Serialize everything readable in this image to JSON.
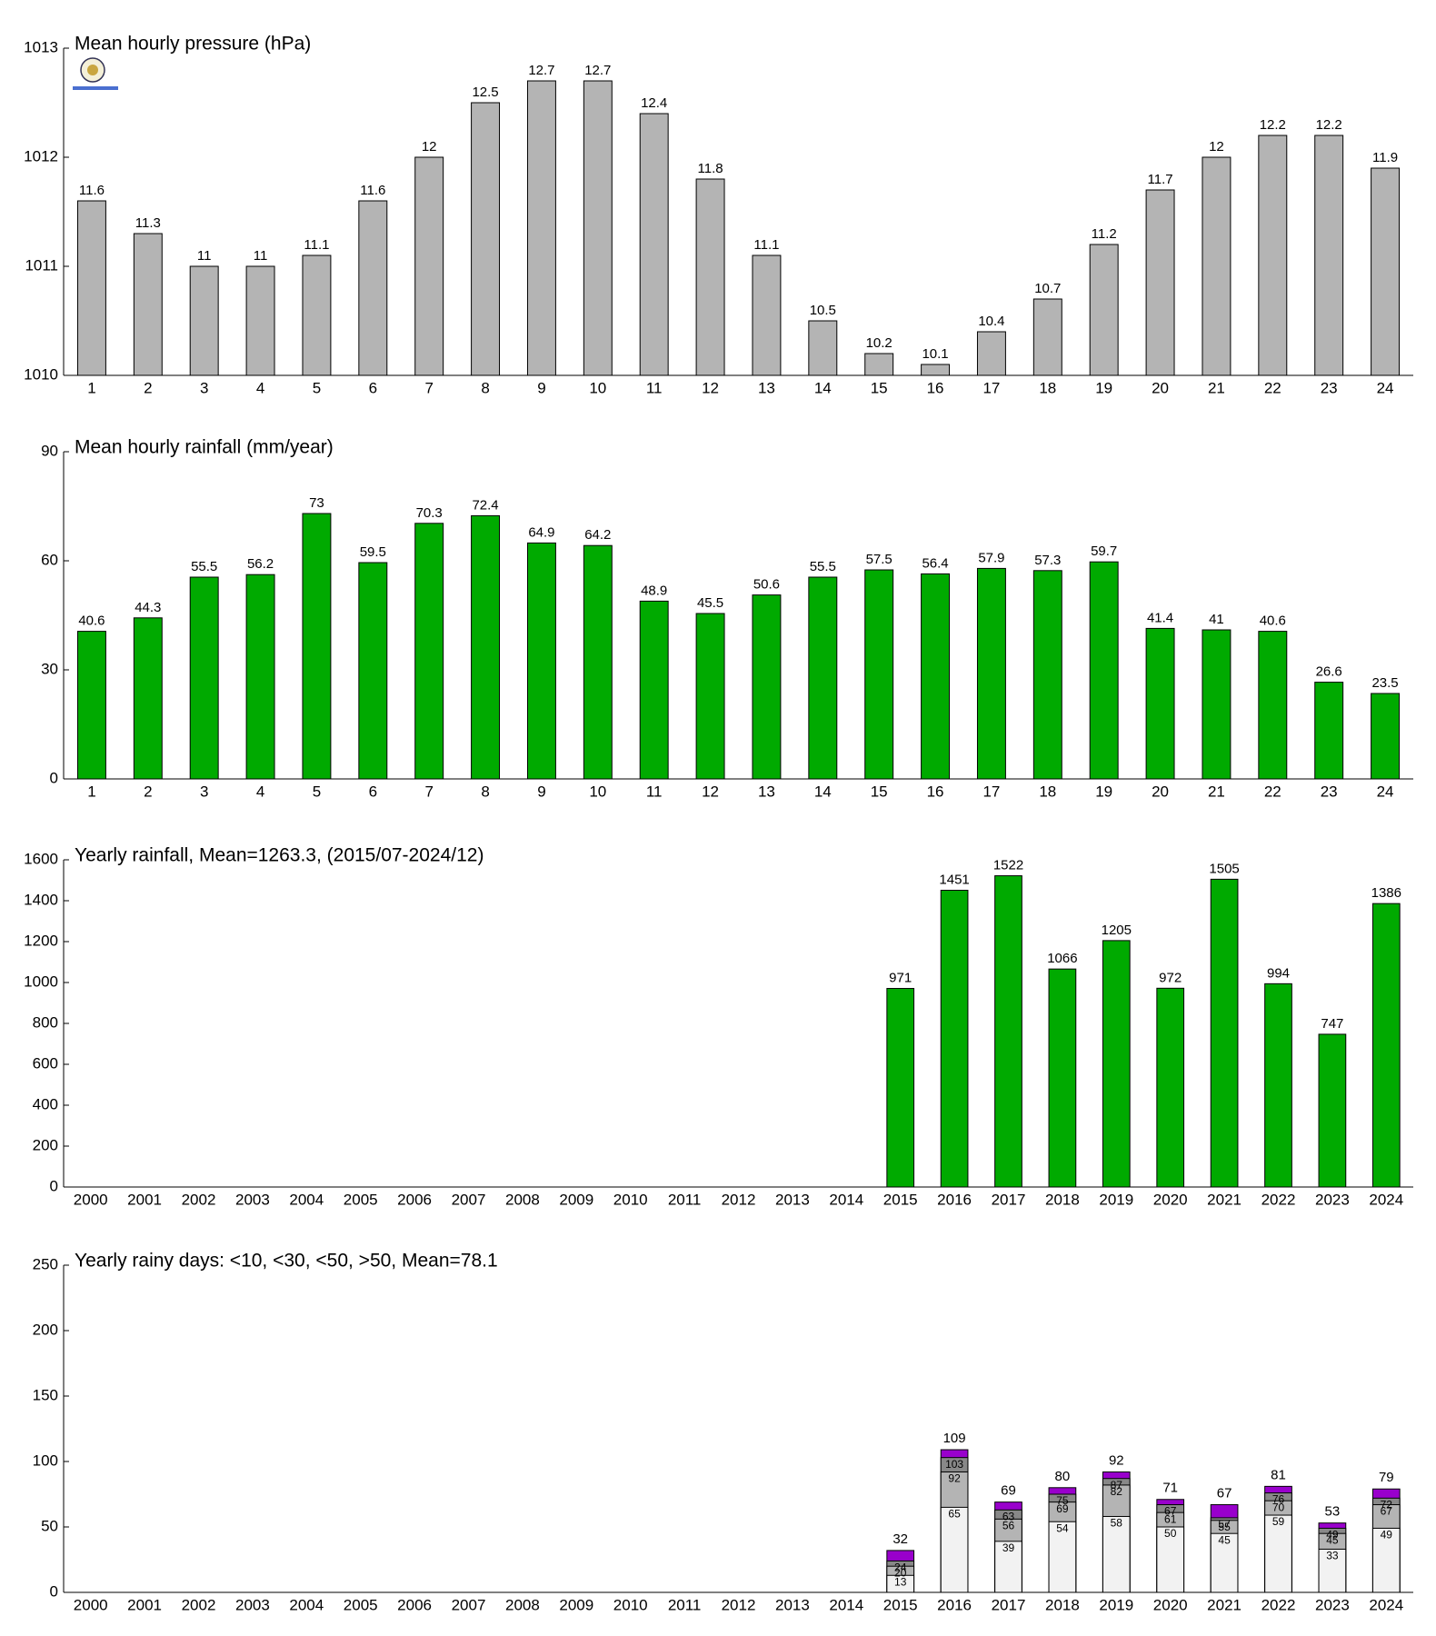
{
  "chart_data": [
    {
      "type": "bar",
      "title": "Mean hourly pressure (hPa)",
      "categories": [
        "1",
        "2",
        "3",
        "4",
        "5",
        "6",
        "7",
        "8",
        "9",
        "10",
        "11",
        "12",
        "13",
        "14",
        "15",
        "16",
        "17",
        "18",
        "19",
        "20",
        "21",
        "22",
        "23",
        "24"
      ],
      "values": [
        1011.6,
        1011.3,
        1011,
        1011,
        1011.1,
        1011.6,
        1012,
        1012.5,
        1012.7,
        1012.7,
        1012.4,
        1011.8,
        1011.1,
        1010.5,
        1010.2,
        1010.1,
        1010.4,
        1010.7,
        1011.2,
        1011.7,
        1012,
        1012.2,
        1012.2,
        1011.9
      ],
      "value_labels": [
        "11.6",
        "11.3",
        "11",
        "11",
        "11.1",
        "11.6",
        "12",
        "12.5",
        "12.7",
        "12.7",
        "12.4",
        "11.8",
        "11.1",
        "10.5",
        "10.2",
        "10.1",
        "10.4",
        "10.7",
        "11.2",
        "11.7",
        "12",
        "12.2",
        "12.2",
        "11.9"
      ],
      "color": "#b4b4b4",
      "ylim": [
        1010,
        1013
      ],
      "yticks": [
        1010,
        1011,
        1012,
        1013
      ]
    },
    {
      "type": "bar",
      "title": "Mean hourly rainfall (mm/year)",
      "categories": [
        "1",
        "2",
        "3",
        "4",
        "5",
        "6",
        "7",
        "8",
        "9",
        "10",
        "11",
        "12",
        "13",
        "14",
        "15",
        "16",
        "17",
        "18",
        "19",
        "20",
        "21",
        "22",
        "23",
        "24"
      ],
      "values": [
        40.6,
        44.3,
        55.5,
        56.2,
        73,
        59.5,
        70.3,
        72.4,
        64.9,
        64.2,
        48.9,
        45.5,
        50.6,
        55.5,
        57.5,
        56.4,
        57.9,
        57.3,
        59.7,
        41.4,
        41,
        40.6,
        26.6,
        23.5
      ],
      "color": "#00aa00",
      "ylim": [
        0,
        90
      ],
      "yticks": [
        0,
        30,
        60,
        90
      ]
    },
    {
      "type": "bar",
      "title": "Yearly rainfall, Mean=1263.3, (2015/07-2024/12)",
      "categories": [
        "2000",
        "2001",
        "2002",
        "2003",
        "2004",
        "2005",
        "2006",
        "2007",
        "2008",
        "2009",
        "2010",
        "2011",
        "2012",
        "2013",
        "2014",
        "2015",
        "2016",
        "2017",
        "2018",
        "2019",
        "2020",
        "2021",
        "2022",
        "2023",
        "2024"
      ],
      "values": [
        null,
        null,
        null,
        null,
        null,
        null,
        null,
        null,
        null,
        null,
        null,
        null,
        null,
        null,
        null,
        971,
        1451,
        1522,
        1066,
        1205,
        972,
        1505,
        994,
        747,
        1386
      ],
      "color": "#00aa00",
      "ylim": [
        0,
        1600
      ],
      "yticks": [
        0,
        200,
        400,
        600,
        800,
        1000,
        1200,
        1400,
        1600
      ]
    },
    {
      "type": "overlay_bar",
      "title": "Yearly rainy days: <10, <30, <50, >50, Mean=78.1",
      "categories": [
        "2000",
        "2001",
        "2002",
        "2003",
        "2004",
        "2005",
        "2006",
        "2007",
        "2008",
        "2009",
        "2010",
        "2011",
        "2012",
        "2013",
        "2014",
        "2015",
        "2016",
        "2017",
        "2018",
        "2019",
        "2020",
        "2021",
        "2022",
        "2023",
        "2024"
      ],
      "series": [
        {
          "color": "#f2f2f2",
          "values": [
            null,
            null,
            null,
            null,
            null,
            null,
            null,
            null,
            null,
            null,
            null,
            null,
            null,
            null,
            null,
            13,
            65,
            39,
            54,
            58,
            50,
            45,
            59,
            33,
            49
          ]
        },
        {
          "color": "#b4b4b4",
          "values": [
            null,
            null,
            null,
            null,
            null,
            null,
            null,
            null,
            null,
            null,
            null,
            null,
            null,
            null,
            null,
            20,
            92,
            56,
            69,
            82,
            61,
            55,
            70,
            45,
            67
          ]
        },
        {
          "color": "#888888",
          "values": [
            null,
            null,
            null,
            null,
            null,
            null,
            null,
            null,
            null,
            null,
            null,
            null,
            null,
            null,
            null,
            24,
            103,
            63,
            75,
            87,
            67,
            57,
            76,
            49,
            72
          ]
        },
        {
          "color": "#9900cc",
          "values": [
            null,
            null,
            null,
            null,
            null,
            null,
            null,
            null,
            null,
            null,
            null,
            null,
            null,
            null,
            null,
            32,
            109,
            69,
            80,
            92,
            71,
            67,
            81,
            53,
            79
          ]
        }
      ],
      "ylim": [
        0,
        250
      ],
      "yticks": [
        0,
        50,
        100,
        150,
        200,
        250
      ]
    }
  ]
}
